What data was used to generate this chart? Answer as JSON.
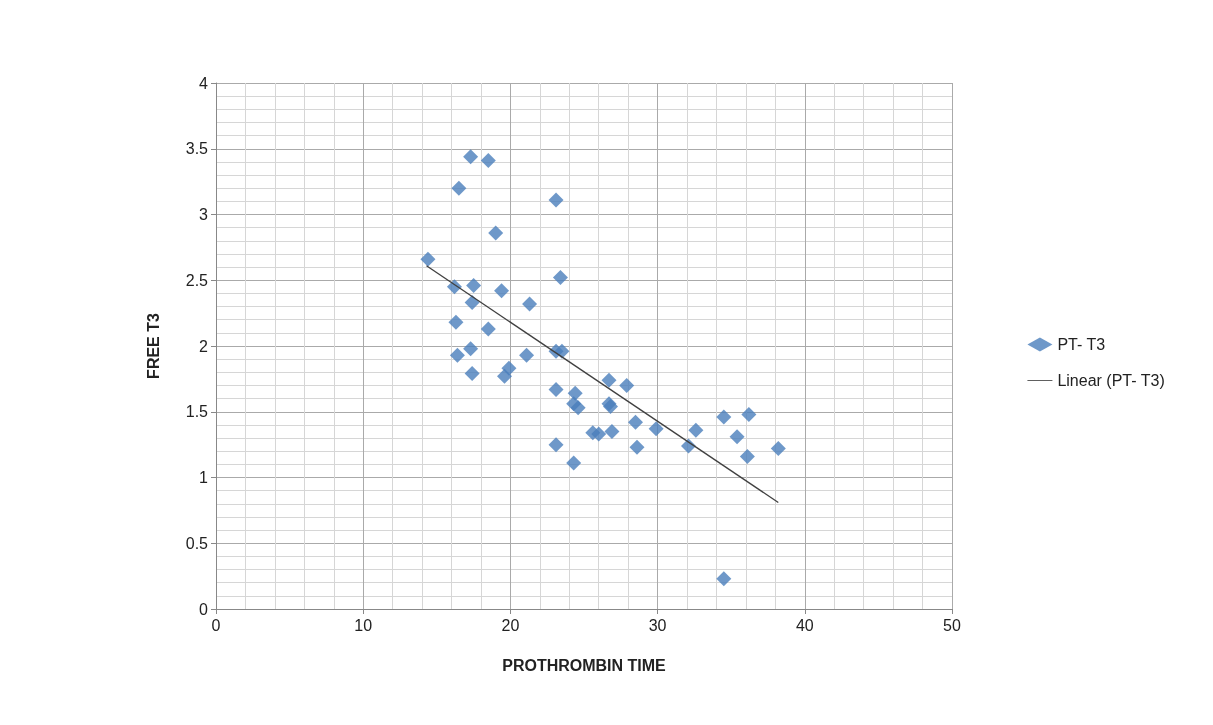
{
  "chart_data": {
    "type": "scatter",
    "xlabel": "PROTHROMBIN TIME",
    "ylabel": "FREE T3",
    "xlim": [
      0,
      50
    ],
    "xticks": [
      0,
      10,
      20,
      30,
      40,
      50
    ],
    "ylim": [
      0,
      4
    ],
    "yticks": [
      0,
      0.5,
      1,
      1.5,
      2,
      2.5,
      3,
      3.5,
      4
    ],
    "grid": true,
    "legend": "right",
    "marker": "diamond",
    "series": [
      {
        "name": "PT- T3",
        "color": "#4a7ebb",
        "x": [
          14.4,
          17.3,
          18.5,
          16.5,
          23.1,
          19,
          23.4,
          16.2,
          17.5,
          19.4,
          17.4,
          21.3,
          16.3,
          18.5,
          16.4,
          17.3,
          21.1,
          23.1,
          23.5,
          17.4,
          19.9,
          19.6,
          26.7,
          27.9,
          23.1,
          24.4,
          24.3,
          24.6,
          26.7,
          26.8,
          28.5,
          29.9,
          25.6,
          26,
          26.9,
          23.1,
          24.3,
          28.6,
          34.5,
          36.2,
          35.4,
          36.1,
          38.2,
          32.6,
          32.1,
          34.5
        ],
        "values": [
          2.66,
          3.44,
          3.41,
          3.2,
          3.11,
          2.86,
          2.52,
          2.45,
          2.46,
          2.42,
          2.33,
          2.32,
          2.18,
          2.13,
          1.93,
          1.98,
          1.93,
          1.96,
          1.96,
          1.79,
          1.83,
          1.77,
          1.74,
          1.7,
          1.67,
          1.64,
          1.56,
          1.53,
          1.56,
          1.54,
          1.42,
          1.37,
          1.34,
          1.33,
          1.35,
          1.25,
          1.11,
          1.23,
          1.46,
          1.48,
          1.31,
          1.16,
          1.22,
          1.36,
          1.24,
          0.23
        ]
      },
      {
        "name": "Linear (PT- T3)",
        "type": "line",
        "color": "#404040",
        "marker": "none",
        "x": [
          14.3,
          38.2
        ],
        "values": [
          2.61,
          0.81
        ]
      }
    ]
  }
}
